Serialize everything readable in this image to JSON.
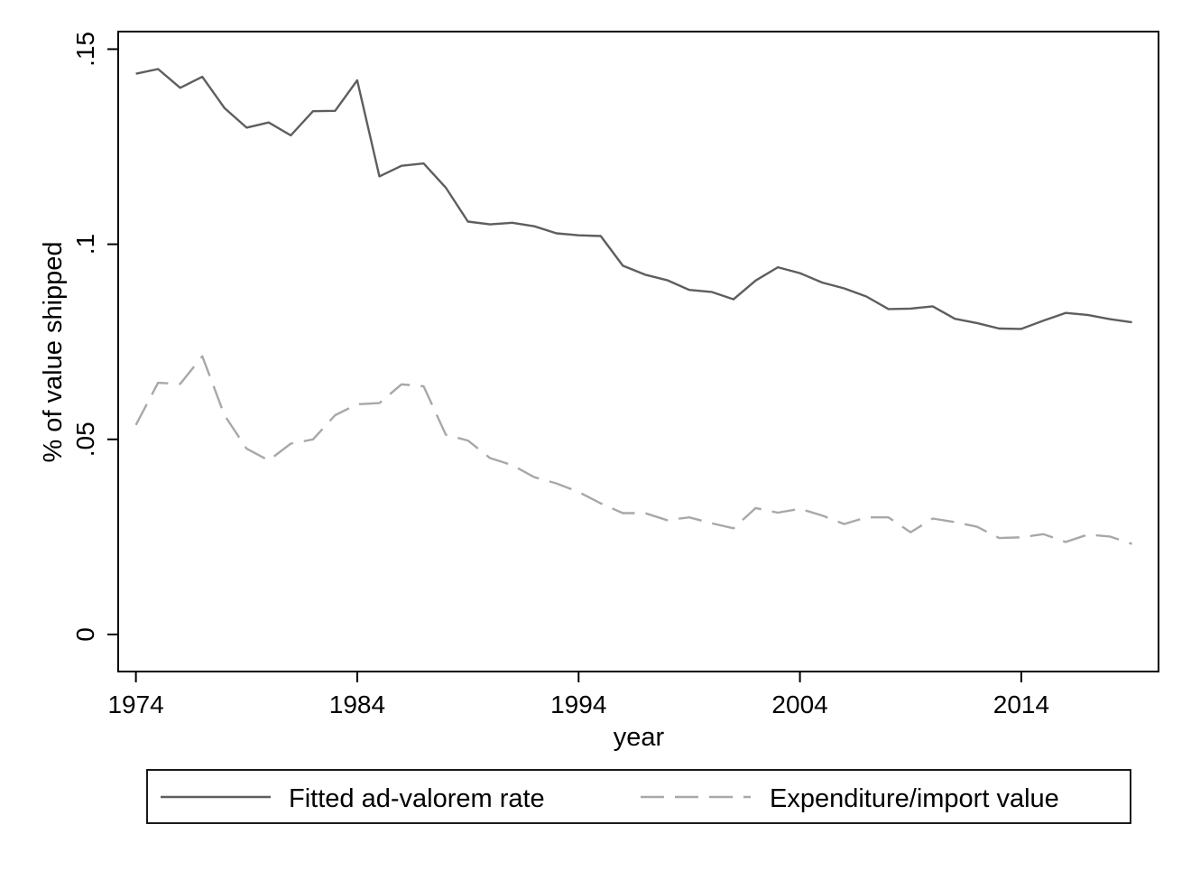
{
  "chart_data": {
    "type": "line",
    "xlabel": "year",
    "ylabel": "% of value shipped",
    "xlim": [
      1973.2,
      2020.2
    ],
    "ylim": [
      -0.0095,
      0.1545
    ],
    "x_ticks": [
      {
        "value": 1974,
        "label": "1974"
      },
      {
        "value": 1984,
        "label": "1984"
      },
      {
        "value": 1994,
        "label": "1994"
      },
      {
        "value": 2004,
        "label": "2004"
      },
      {
        "value": 2014,
        "label": "2014"
      }
    ],
    "y_ticks": [
      {
        "value": 0,
        "label": "0"
      },
      {
        "value": 0.05,
        "label": ".05"
      },
      {
        "value": 0.1,
        "label": ".1"
      },
      {
        "value": 0.15,
        "label": ".15"
      }
    ],
    "grid": false,
    "legend_position": "bottom",
    "x": [
      1974,
      1975,
      1976,
      1977,
      1978,
      1979,
      1980,
      1981,
      1982,
      1983,
      1984,
      1985,
      1986,
      1987,
      1988,
      1989,
      1990,
      1991,
      1992,
      1993,
      1994,
      1995,
      1996,
      1997,
      1998,
      1999,
      2000,
      2001,
      2002,
      2003,
      2004,
      2005,
      2006,
      2007,
      2008,
      2009,
      2010,
      2011,
      2012,
      2013,
      2014,
      2015,
      2016,
      2017,
      2018,
      2019
    ],
    "series": [
      {
        "name": "Fitted ad-valorem rate",
        "color": "#5e5e5e",
        "dash": "solid",
        "values": [
          0.1437,
          0.1449,
          0.1401,
          0.1429,
          0.1349,
          0.1299,
          0.1312,
          0.1279,
          0.1341,
          0.1342,
          0.142,
          0.1174,
          0.1201,
          0.1207,
          0.1145,
          0.1058,
          0.1051,
          0.1055,
          0.1046,
          0.1028,
          0.1023,
          0.1021,
          0.0945,
          0.0922,
          0.0908,
          0.0883,
          0.0878,
          0.0859,
          0.0907,
          0.0941,
          0.0926,
          0.0902,
          0.0887,
          0.0866,
          0.0834,
          0.0835,
          0.0841,
          0.0809,
          0.0798,
          0.0784,
          0.0783,
          0.0804,
          0.0824,
          0.0819,
          0.0808,
          0.08
        ]
      },
      {
        "name": "Expenditure/import value",
        "color": "#a8a8a8",
        "dash": "dashed",
        "values": [
          0.0537,
          0.0645,
          0.0642,
          0.0713,
          0.0562,
          0.0476,
          0.0446,
          0.0489,
          0.05,
          0.0562,
          0.059,
          0.0593,
          0.0641,
          0.0636,
          0.0512,
          0.0497,
          0.0452,
          0.0434,
          0.0403,
          0.0387,
          0.0365,
          0.0336,
          0.0311,
          0.0311,
          0.0293,
          0.03,
          0.0285,
          0.0272,
          0.0324,
          0.0312,
          0.0322,
          0.0305,
          0.0283,
          0.03,
          0.03,
          0.0262,
          0.0297,
          0.0288,
          0.0276,
          0.0247,
          0.0249,
          0.0257,
          0.0237,
          0.0256,
          0.0251,
          0.0232
        ]
      }
    ]
  }
}
